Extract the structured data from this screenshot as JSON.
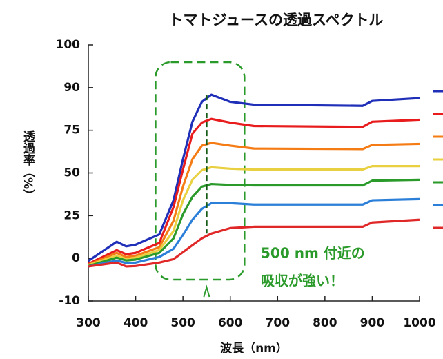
{
  "chart_data": {
    "type": "line",
    "title": "トマトジュースの透過スペクトル",
    "x_label": "波長（nm）",
    "y_label": "透過率（%）",
    "annotations": [
      "500 nm 付近の",
      "吸収が強い！"
    ],
    "x": [
      300,
      360,
      380,
      400,
      450,
      480,
      500,
      520,
      540,
      560,
      600,
      650,
      880,
      900,
      1000
    ],
    "xlim": [
      300,
      1000
    ],
    "xticks": [
      300,
      400,
      500,
      600,
      700,
      800,
      900,
      1000
    ],
    "ylim": [
      -10,
      100
    ],
    "yticks": [
      -10,
      0,
      25,
      50,
      75,
      90,
      100
    ],
    "series": [
      {
        "color": "#1f2fb8",
        "values": [
          -0.6,
          9.7,
          7,
          8,
          14,
          34,
          58,
          78,
          85,
          87.5,
          85,
          84,
          83.6,
          85.3,
          86.3
        ]
      },
      {
        "color": "#e81c1c",
        "values": [
          -1.3,
          4.8,
          2.4,
          3.2,
          9,
          30,
          52,
          73,
          77.7,
          79,
          77.7,
          76.5,
          76.2,
          78,
          78.7
        ]
      },
      {
        "color": "#f57c14",
        "values": [
          -1.5,
          3.2,
          0.8,
          1.6,
          6.5,
          22,
          42,
          58,
          66,
          67.6,
          66,
          64.3,
          64,
          66.4,
          67
        ]
      },
      {
        "color": "#e8d040",
        "values": [
          -1.6,
          1.6,
          -0.2,
          0.4,
          4.8,
          16,
          34,
          46,
          51.6,
          53.3,
          52.5,
          52,
          52,
          54,
          54
        ]
      },
      {
        "color": "#2a9a2a",
        "values": [
          -1.8,
          0.4,
          -0.5,
          -0.3,
          3.2,
          11.7,
          25.8,
          36,
          42,
          43.5,
          43,
          42.7,
          42.7,
          45.5,
          46
        ]
      },
      {
        "color": "#2b7fd8",
        "values": [
          -1.9,
          -0.5,
          -1.1,
          -1,
          0.8,
          5.6,
          13.7,
          22.6,
          29,
          32.3,
          32.3,
          31.5,
          31.5,
          34,
          34.7
        ]
      },
      {
        "color": "#e02828",
        "values": [
          -1.9,
          -1,
          -1.9,
          -1.8,
          -1,
          -0.2,
          3.6,
          7.7,
          11.7,
          14.5,
          17.7,
          18.5,
          18.5,
          21,
          22.6
        ]
      }
    ],
    "marker_x": 550,
    "box_xlim": [
      480,
      630
    ]
  }
}
